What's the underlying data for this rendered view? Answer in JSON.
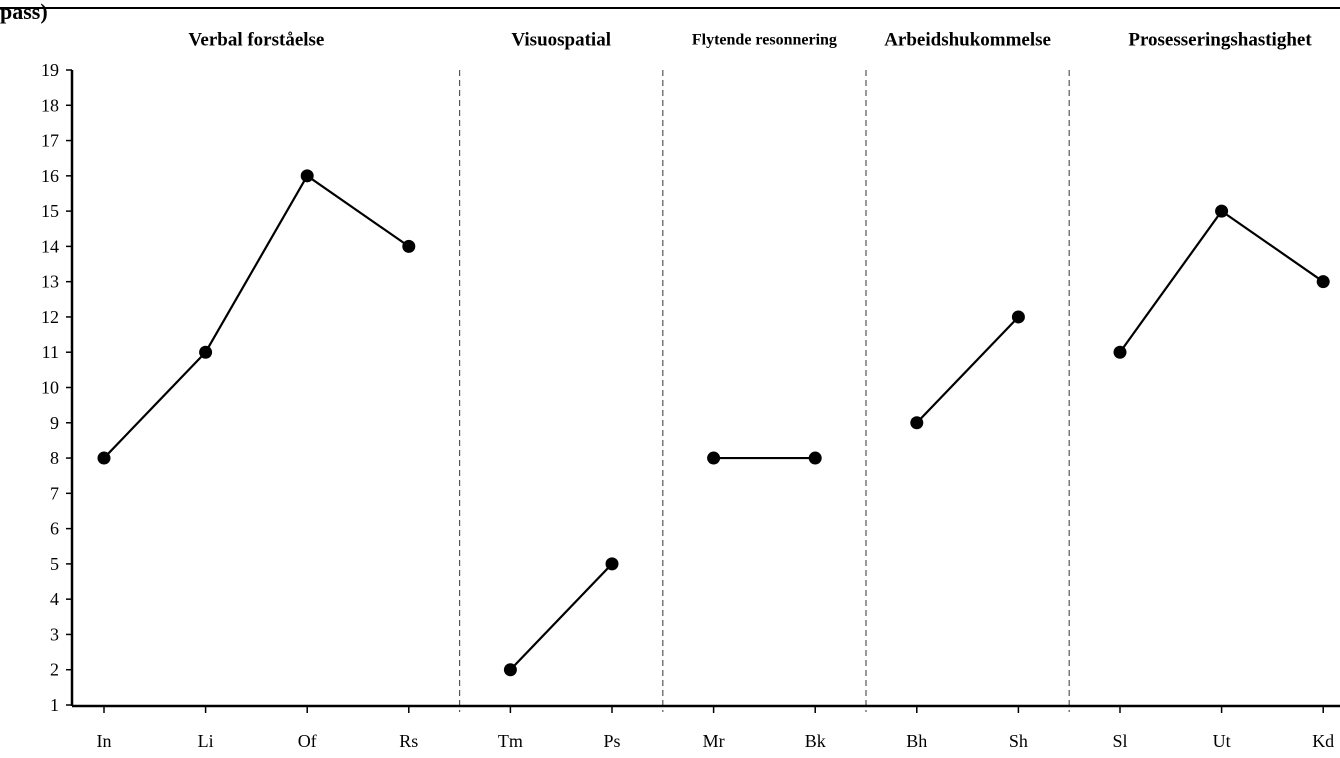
{
  "page_header": "pass)",
  "chart_data": {
    "type": "line",
    "title": "",
    "xlabel": "",
    "ylabel": "",
    "ylim": [
      1,
      19
    ],
    "yticks": [
      1,
      2,
      3,
      4,
      5,
      6,
      7,
      8,
      9,
      10,
      11,
      12,
      13,
      14,
      15,
      16,
      17,
      18,
      19
    ],
    "grid": false,
    "groups": [
      {
        "name": "Verbal forståelse",
        "categories": [
          "In",
          "Li",
          "Of",
          "Rs"
        ],
        "values": [
          8,
          11,
          16,
          14
        ]
      },
      {
        "name": "Visuospatial",
        "categories": [
          "Tm",
          "Ps"
        ],
        "values": [
          2,
          5
        ]
      },
      {
        "name": "Flytende resonnering",
        "categories": [
          "Mr",
          "Bk"
        ],
        "values": [
          8,
          8
        ]
      },
      {
        "name": "Arbeidshukommelse",
        "categories": [
          "Bh",
          "Sh"
        ],
        "values": [
          9,
          12
        ]
      },
      {
        "name": "Prosesseringshastighet",
        "categories": [
          "Sl",
          "Ut",
          "Kd"
        ],
        "values": [
          11,
          15,
          13
        ]
      }
    ],
    "colors": {
      "line": "#000000",
      "marker": "#000000",
      "divider": "#555555"
    }
  }
}
